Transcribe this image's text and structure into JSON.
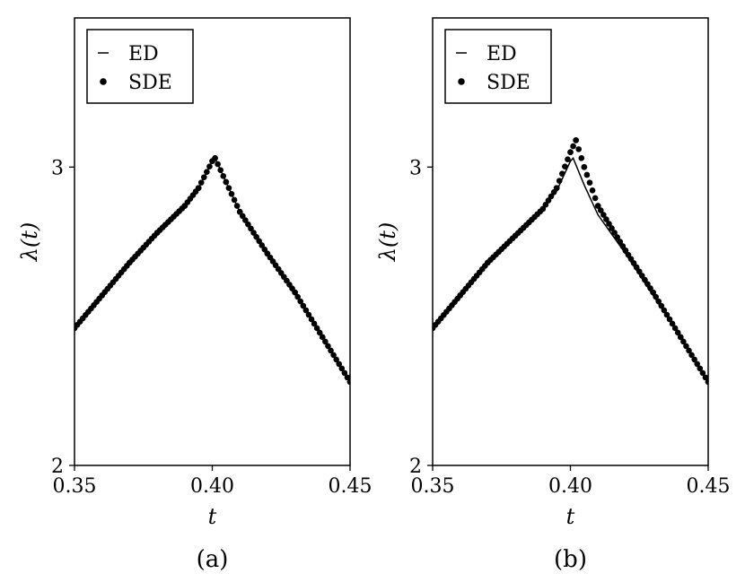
{
  "chart_data": [
    {
      "type": "line",
      "panel_label": "(a)",
      "xlabel": "t",
      "ylabel": "λ(t)",
      "xlim": [
        0.35,
        0.45
      ],
      "ylim": [
        2.0,
        3.5
      ],
      "xticks": [
        "0.35",
        "0.40",
        "0.45"
      ],
      "yticks": [
        "2",
        "3"
      ],
      "grid": false,
      "legend": "top-left",
      "series": [
        {
          "name": "ED",
          "kind": "line",
          "x": [
            0.35,
            0.36,
            0.37,
            0.38,
            0.39,
            0.395,
            0.4,
            0.401,
            0.405,
            0.41,
            0.42,
            0.43,
            0.44,
            0.45
          ],
          "y": [
            2.46,
            2.57,
            2.68,
            2.78,
            2.87,
            2.93,
            3.02,
            3.03,
            2.95,
            2.85,
            2.71,
            2.58,
            2.43,
            2.28
          ]
        },
        {
          "name": "SDE",
          "kind": "scatter",
          "x": [
            0.35,
            0.36,
            0.37,
            0.38,
            0.39,
            0.395,
            0.4,
            0.401,
            0.405,
            0.41,
            0.42,
            0.43,
            0.44,
            0.45
          ],
          "y": [
            2.46,
            2.57,
            2.68,
            2.78,
            2.87,
            2.93,
            3.02,
            3.03,
            2.95,
            2.85,
            2.71,
            2.58,
            2.43,
            2.28
          ]
        }
      ]
    },
    {
      "type": "line",
      "panel_label": "(b)",
      "xlabel": "t",
      "ylabel": "λ(t)",
      "xlim": [
        0.35,
        0.45
      ],
      "ylim": [
        2.0,
        3.5
      ],
      "xticks": [
        "0.35",
        "0.40",
        "0.45"
      ],
      "yticks": [
        "2",
        "3"
      ],
      "grid": false,
      "legend": "top-left",
      "series": [
        {
          "name": "ED",
          "kind": "line",
          "x": [
            0.35,
            0.36,
            0.37,
            0.38,
            0.39,
            0.395,
            0.4,
            0.401,
            0.405,
            0.41,
            0.42,
            0.43,
            0.44,
            0.45
          ],
          "y": [
            2.46,
            2.57,
            2.68,
            2.77,
            2.86,
            2.92,
            3.02,
            3.03,
            2.94,
            2.84,
            2.71,
            2.57,
            2.43,
            2.28
          ]
        },
        {
          "name": "SDE",
          "kind": "scatter",
          "x": [
            0.35,
            0.36,
            0.37,
            0.38,
            0.39,
            0.395,
            0.4,
            0.402,
            0.405,
            0.41,
            0.42,
            0.43,
            0.44,
            0.45
          ],
          "y": [
            2.46,
            2.57,
            2.68,
            2.77,
            2.86,
            2.93,
            3.05,
            3.09,
            3.0,
            2.87,
            2.72,
            2.58,
            2.43,
            2.28
          ]
        }
      ]
    }
  ]
}
